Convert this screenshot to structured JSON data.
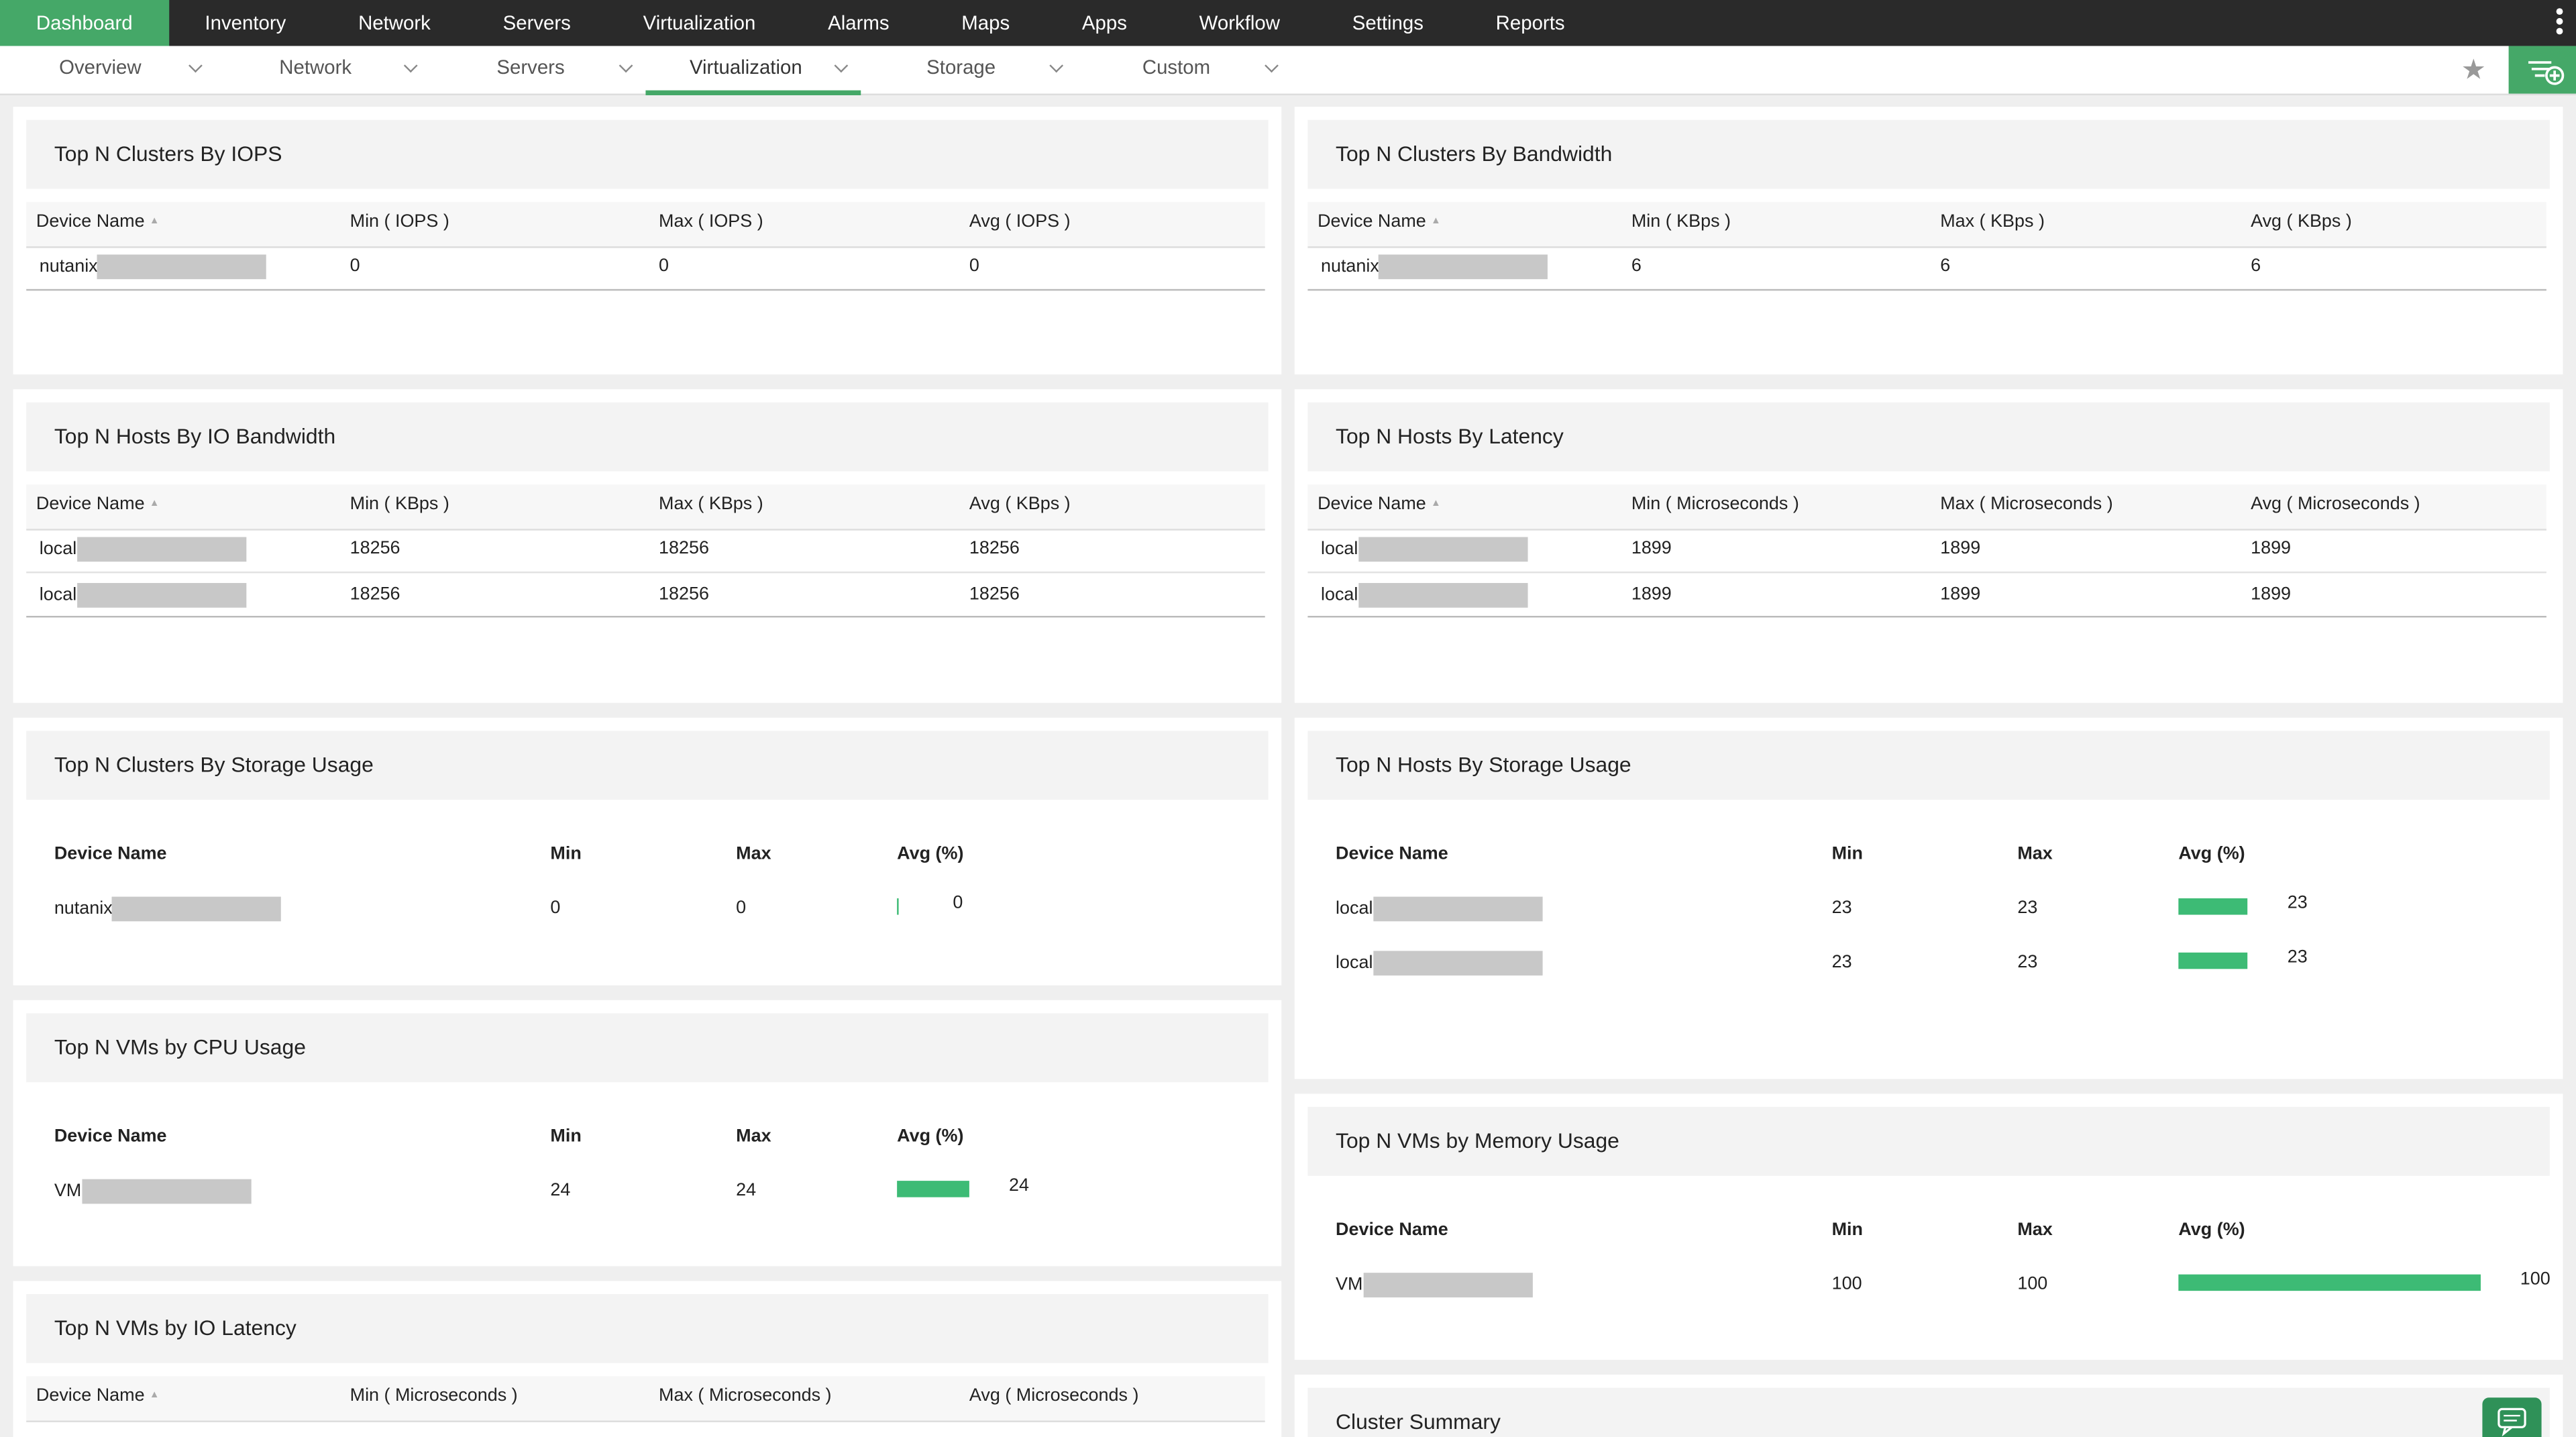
{
  "nav": {
    "items": [
      "Dashboard",
      "Inventory",
      "Network",
      "Servers",
      "Virtualization",
      "Alarms",
      "Maps",
      "Apps",
      "Workflow",
      "Settings",
      "Reports"
    ],
    "active": 0
  },
  "subnav": {
    "items": [
      "Overview",
      "Network",
      "Servers",
      "Virtualization",
      "Storage",
      "Custom"
    ],
    "active": 3
  },
  "widgets": [
    {
      "title": "Top N Clusters By IOPS",
      "columns": [
        "Device Name",
        "Min ( IOPS )",
        "Max ( IOPS )",
        "Avg ( IOPS )"
      ],
      "rows": [
        [
          "nutanix",
          0,
          0,
          0
        ]
      ]
    },
    {
      "title": "Top N Clusters By Bandwidth",
      "columns": [
        "Device Name",
        "Min ( KBps )",
        "Max ( KBps )",
        "Avg ( KBps )"
      ],
      "rows": [
        [
          "nutanix",
          6,
          6,
          6
        ]
      ]
    },
    {
      "title": "Top N Hosts By IO Bandwidth",
      "columns": [
        "Device Name",
        "Min ( KBps )",
        "Max ( KBps )",
        "Avg ( KBps )"
      ],
      "rows": [
        [
          "local",
          18256,
          18256,
          18256
        ],
        [
          "local",
          18256,
          18256,
          18256
        ]
      ]
    },
    {
      "title": "Top N Hosts By Latency",
      "columns": [
        "Device Name",
        "Min ( Microseconds )",
        "Max ( Microseconds )",
        "Avg ( Microseconds )"
      ],
      "rows": [
        [
          "local",
          1899,
          1899,
          1899
        ],
        [
          "local",
          1899,
          1899,
          1899
        ]
      ]
    },
    {
      "title": "Top N Clusters By Storage Usage",
      "bars": true,
      "columns": [
        "Device Name",
        "Min",
        "Max",
        "Avg (%)"
      ],
      "rows": [
        [
          "nutanix",
          0,
          0,
          0
        ]
      ]
    },
    {
      "title": "Top N Hosts By Storage Usage",
      "bars": true,
      "columns": [
        "Device Name",
        "Min",
        "Max",
        "Avg (%)"
      ],
      "rows": [
        [
          "local",
          23,
          23,
          23
        ],
        [
          "local",
          23,
          23,
          23
        ]
      ]
    },
    {
      "title": "Top N VMs by CPU Usage",
      "bars": true,
      "columns": [
        "Device Name",
        "Min",
        "Max",
        "Avg (%)"
      ],
      "rows": [
        [
          "VM",
          24,
          24,
          24
        ]
      ]
    },
    {
      "title": "Top N VMs by Memory Usage",
      "bars": true,
      "columns": [
        "Device Name",
        "Min",
        "Max",
        "Avg (%)"
      ],
      "rows": [
        [
          "VM",
          100,
          100,
          100
        ]
      ]
    },
    {
      "title": "Top N VMs by IO Latency",
      "columns": [
        "Device Name",
        "Min ( Microseconds )",
        "Max ( Microseconds )",
        "Avg ( Microseconds )"
      ],
      "rows": []
    },
    {
      "title": "Cluster Summary"
    }
  ]
}
